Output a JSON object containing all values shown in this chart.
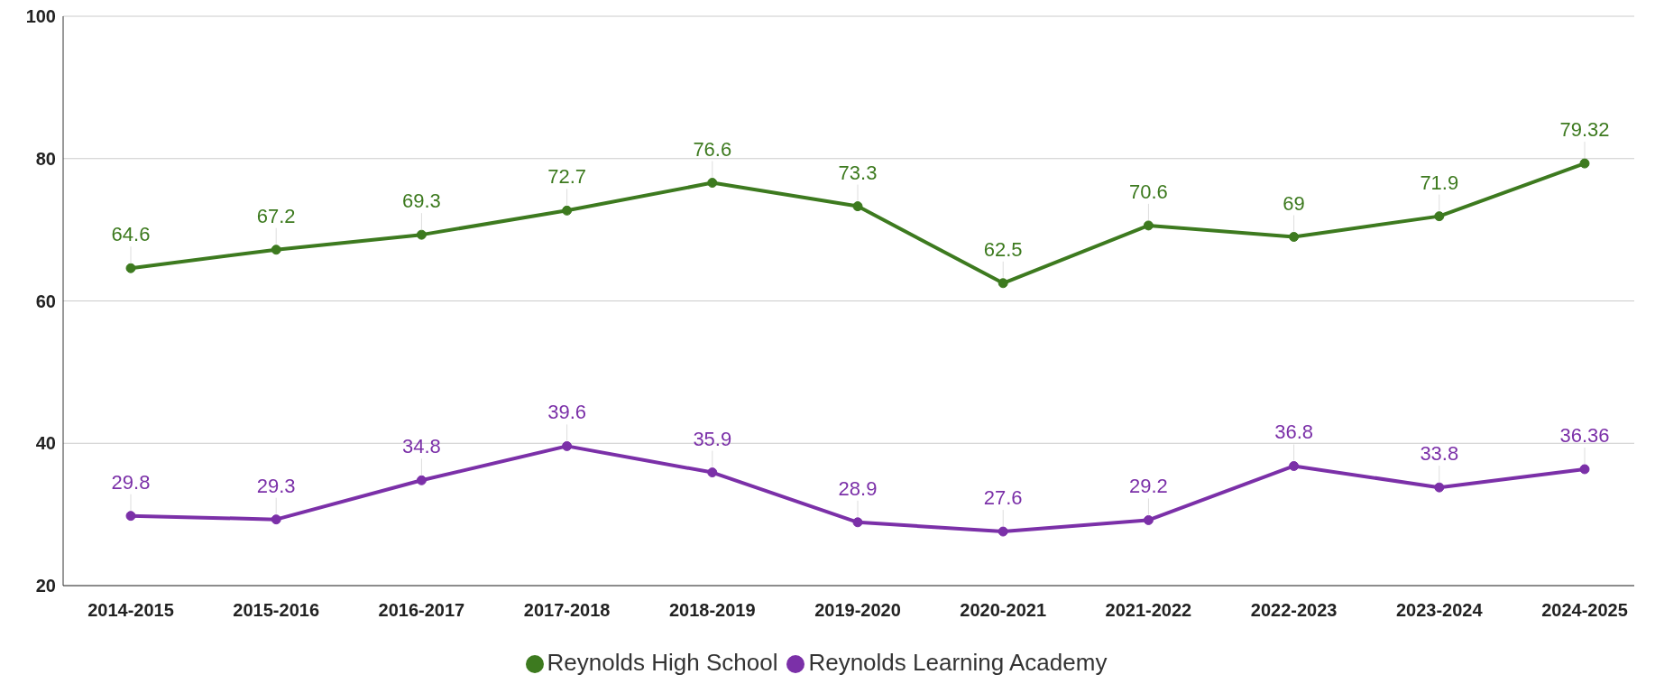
{
  "chart_data": {
    "type": "line",
    "categories": [
      "2014-2015",
      "2015-2016",
      "2016-2017",
      "2017-2018",
      "2018-2019",
      "2019-2020",
      "2020-2021",
      "2021-2022",
      "2022-2023",
      "2023-2024",
      "2024-2025"
    ],
    "series": [
      {
        "name": "Reynolds High School",
        "color": "#3d7a1f",
        "values": [
          64.6,
          67.2,
          69.3,
          72.7,
          76.6,
          73.3,
          62.5,
          70.6,
          69,
          71.9,
          79.32
        ]
      },
      {
        "name": "Reynolds Learning Academy",
        "color": "#7b30a8",
        "values": [
          29.8,
          29.3,
          34.8,
          39.6,
          35.9,
          28.9,
          27.6,
          29.2,
          36.8,
          33.8,
          36.36
        ]
      }
    ],
    "ylim": [
      20,
      100
    ],
    "yticks": [
      20,
      40,
      60,
      80,
      100
    ],
    "grid": "y",
    "legend": "bottom",
    "marker": "circle",
    "line_style": "solid",
    "data_labels": true
  }
}
